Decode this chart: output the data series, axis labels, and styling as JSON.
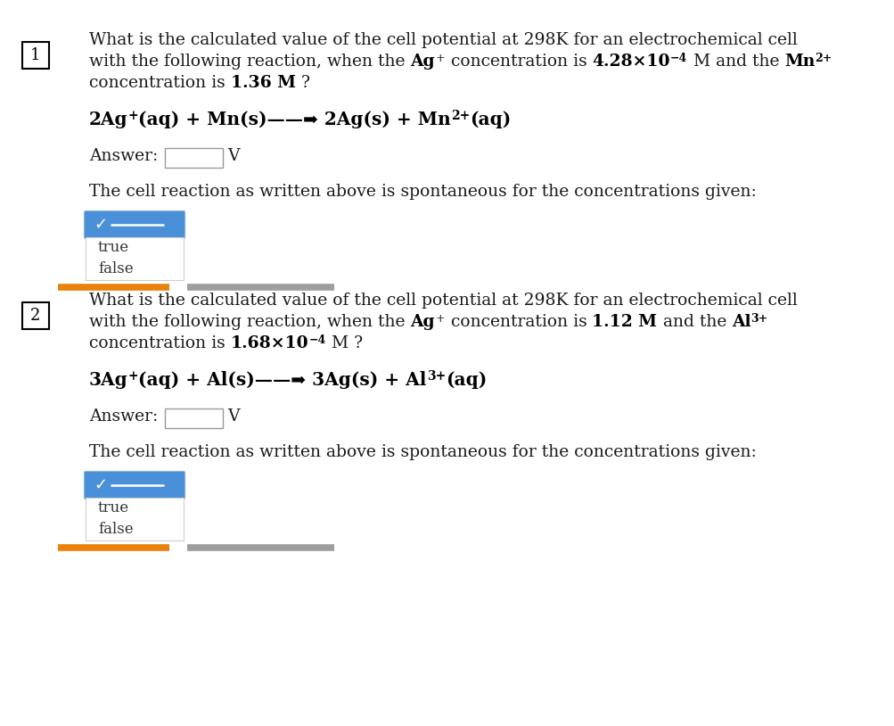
{
  "bg_color": "#ffffff",
  "text_color": "#1a1a1a",
  "bold_color": "#000000",
  "separator_color_orange": "#E8820C",
  "separator_color_gray": "#9E9E9E",
  "dropdown_header_color": "#4A90D9",
  "q1_number": "1",
  "q2_number": "2",
  "q1_line1": "What is the calculated value of the cell potential at 298K for an electrochemical cell",
  "q1_line2a": "with the following reaction, when the ",
  "q1_line2b": "Ag",
  "q1_line2b_sup": "+",
  "q1_line2c": " concentration is ",
  "q1_line2d": "4.28×10",
  "q1_line2d_sup": "−4",
  "q1_line2e": " M and the ",
  "q1_line2f": "Mn",
  "q1_line2f_sup": "2+",
  "q1_line3a": "concentration is ",
  "q1_line3b": "1.36 M",
  "q1_line3c": " ?",
  "q1_reaction_a": "2Ag",
  "q1_reaction_a_sup": "+",
  "q1_reaction_b": "(aq) + Mn(s)——➡ 2Ag(s) + Mn",
  "q1_reaction_c_sup": "2+",
  "q1_reaction_d": "(aq)",
  "q2_line1": "What is the calculated value of the cell potential at 298K for an electrochemical cell",
  "q2_line2a": "with the following reaction, when the ",
  "q2_line2b": "Ag",
  "q2_line2b_sup": "+",
  "q2_line2c": " concentration is ",
  "q2_line2d": "1.12 M",
  "q2_line2e": " and the ",
  "q2_line2f": "Al",
  "q2_line2f_sup": "3+",
  "q2_line3a": "concentration is ",
  "q2_line3b": "1.68×10",
  "q2_line3b_sup": "−4",
  "q2_line3c": " M ?",
  "q2_reaction_a": "3Ag",
  "q2_reaction_a_sup": "+",
  "q2_reaction_b": "(aq) + Al(s)——➡ 3Ag(s) + Al",
  "q2_reaction_c_sup": "3+",
  "q2_reaction_d": "(aq)",
  "answer_label": "Answer:",
  "answer_unit": "V",
  "spontaneous_text": "The cell reaction as written above is spontaneous for the concentrations given:",
  "dropdown_check": "✓",
  "dropdown_true": "true",
  "dropdown_false": "false"
}
